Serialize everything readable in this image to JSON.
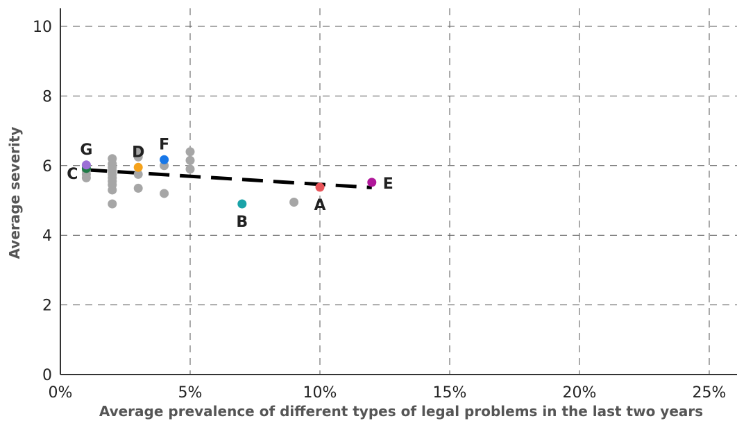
{
  "chart_data": {
    "type": "scatter",
    "title": "",
    "xlabel": "Average prevalence of different types of legal problems in the last two years",
    "ylabel": "Average severity",
    "xlim": [
      0,
      26
    ],
    "ylim": [
      0,
      10.5
    ],
    "x_ticks": [
      0,
      5,
      10,
      15,
      20,
      25
    ],
    "x_tick_labels": [
      "0%",
      "5%",
      "10%",
      "15%",
      "20%",
      "25%"
    ],
    "y_ticks": [
      0,
      2,
      4,
      6,
      8,
      10
    ],
    "y_tick_labels": [
      "0",
      "2",
      "4",
      "6",
      "8",
      "10"
    ],
    "grid": true,
    "colors": {
      "gray": "#a6a6a6",
      "A": "#e8555a",
      "B": "#1aa3a8",
      "C": "#1e7a46",
      "D": "#f5a21b",
      "E": "#b0189a",
      "F": "#1777e8",
      "G": "#9c6fd6"
    },
    "gray_points": [
      {
        "x": 1,
        "y": 5.65
      },
      {
        "x": 1,
        "y": 5.75
      },
      {
        "x": 1,
        "y": 5.85
      },
      {
        "x": 1,
        "y": 6.0
      },
      {
        "x": 2,
        "y": 4.9
      },
      {
        "x": 2,
        "y": 5.3
      },
      {
        "x": 2,
        "y": 5.45
      },
      {
        "x": 2,
        "y": 5.55
      },
      {
        "x": 2,
        "y": 5.65
      },
      {
        "x": 2,
        "y": 5.75
      },
      {
        "x": 2,
        "y": 5.85
      },
      {
        "x": 2,
        "y": 5.95
      },
      {
        "x": 2,
        "y": 6.05
      },
      {
        "x": 2,
        "y": 6.2
      },
      {
        "x": 3,
        "y": 5.35
      },
      {
        "x": 3,
        "y": 5.75
      },
      {
        "x": 3,
        "y": 6.25
      },
      {
        "x": 3,
        "y": 6.4
      },
      {
        "x": 4,
        "y": 5.2
      },
      {
        "x": 4,
        "y": 6.0
      },
      {
        "x": 5,
        "y": 5.9
      },
      {
        "x": 5,
        "y": 6.15
      },
      {
        "x": 5,
        "y": 6.4
      },
      {
        "x": 9,
        "y": 4.95
      }
    ],
    "labeled_points": [
      {
        "label": "A",
        "x": 10,
        "y": 5.38,
        "label_pos": "below"
      },
      {
        "label": "B",
        "x": 7,
        "y": 4.9,
        "label_pos": "below"
      },
      {
        "label": "C",
        "x": 1,
        "y": 5.92,
        "label_pos": "left"
      },
      {
        "label": "D",
        "x": 3,
        "y": 5.95,
        "label_pos": "above"
      },
      {
        "label": "E",
        "x": 12,
        "y": 5.52,
        "label_pos": "right"
      },
      {
        "label": "F",
        "x": 4,
        "y": 6.17,
        "label_pos": "above"
      },
      {
        "label": "G",
        "x": 1,
        "y": 6.02,
        "label_pos": "above"
      }
    ],
    "trend_line": {
      "x": [
        1,
        12
      ],
      "y": [
        5.88,
        5.37
      ]
    }
  }
}
